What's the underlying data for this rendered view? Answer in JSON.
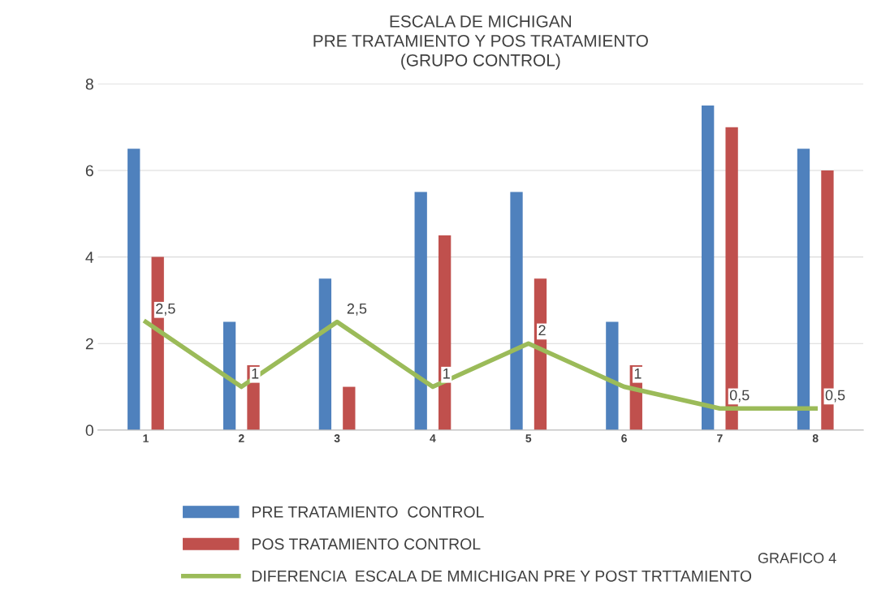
{
  "chart_data": {
    "type": "bar",
    "title": "ESCALA DE MICHIGAN\nPRE TRATAMIENTO Y POS TRATAMIENTO\n(GRUPO CONTROL)",
    "categories": [
      "1",
      "2",
      "3",
      "4",
      "5",
      "6",
      "7",
      "8"
    ],
    "series": [
      {
        "name": "PRE TRATAMIENTO  CONTROL",
        "color": "#4f81bd",
        "values": [
          6.5,
          2.5,
          3.5,
          5.5,
          5.5,
          2.5,
          7.5,
          6.5
        ]
      },
      {
        "name": "POS TRATAMIENTO CONTROL",
        "color": "#c0504d",
        "values": [
          4,
          1.5,
          1,
          4.5,
          3.5,
          1.5,
          7,
          6
        ]
      },
      {
        "name": "DIFERENCIA  ESCALA DE MMICHIGAN PRE Y POST TRTTAMIENTO",
        "type": "line",
        "color": "#9bbb59",
        "values": [
          2.5,
          1,
          2.5,
          1,
          2,
          1,
          0.5,
          0.5
        ],
        "value_labels": [
          "2,5",
          "1",
          "2,5",
          "1",
          "2",
          "1",
          "0,5",
          "0,5"
        ]
      }
    ],
    "ylim": [
      0,
      8
    ],
    "yticks": [
      0,
      2,
      4,
      6,
      8
    ],
    "grid": "y",
    "legend": "bottom",
    "annotations": [
      "GRAFICO 4"
    ]
  }
}
